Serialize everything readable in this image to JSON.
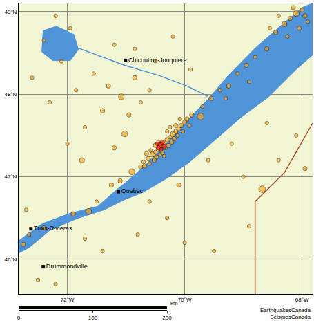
{
  "chart_data": {
    "type": "map",
    "xlim": [
      -72.83,
      -67.82
    ],
    "xticks": [
      {
        "value": -72,
        "label": "72°W"
      },
      {
        "value": -70,
        "label": "70°W"
      },
      {
        "value": -68,
        "label": "68°W"
      }
    ],
    "ylim": [
      45.58,
      49.1
    ],
    "yticks": [
      {
        "value": 46,
        "label": "46°N"
      },
      {
        "value": 47,
        "label": "47°N"
      },
      {
        "value": 48,
        "label": "48°N"
      },
      {
        "value": 49,
        "label": "49°N"
      }
    ],
    "grid": true,
    "areas": [
      {
        "color": "#4f93d8",
        "x": [
          -72.83,
          -72.42,
          -71.95,
          -71.48,
          -71.19,
          -70.96,
          -70.67,
          -70.32,
          -69.96,
          -69.61,
          -69.26,
          -68.8,
          -68.33,
          -67.98,
          -67.82,
          -67.82,
          -68.09,
          -68.56,
          -69.03,
          -69.5,
          -69.91,
          -70.32,
          -70.72,
          -71.02,
          -71.37,
          -71.84,
          -72.3,
          -72.65,
          -72.83
        ],
        "y": [
          46.225,
          46.433,
          46.558,
          46.642,
          46.825,
          46.958,
          47.142,
          47.392,
          47.683,
          47.933,
          48.225,
          48.558,
          48.85,
          49.058,
          49.1,
          48.475,
          48.308,
          47.975,
          47.725,
          47.433,
          47.183,
          46.975,
          46.808,
          46.725,
          46.6,
          46.492,
          46.35,
          46.142,
          46.075
        ]
      },
      {
        "color": "#4f93d8",
        "x": [
          -72.42,
          -72.19,
          -71.89,
          -71.81,
          -71.95,
          -72.25,
          -72.44
        ],
        "y": [
          48.767,
          48.825,
          48.725,
          48.542,
          48.408,
          48.408,
          48.517
        ]
      }
    ],
    "lines": [
      {
        "color": "#4f93d8",
        "x": [
          -71.81,
          -71.02,
          -70.43,
          -69.96,
          -69.61
        ],
        "y": [
          48.558,
          48.35,
          48.225,
          48.1,
          47.975
        ]
      },
      {
        "color": "#a0522d",
        "x": [
          -67.82,
          -68.3,
          -68.8,
          -68.8
        ],
        "y": [
          47.65,
          47.05,
          46.7,
          45.58
        ]
      }
    ],
    "series": [
      {
        "color": "#f5a623",
        "marker": "circle",
        "x": [
          -70.75,
          -70.7,
          -70.68,
          -70.62,
          -70.6,
          -70.55,
          -70.52,
          -70.5,
          -70.48,
          -70.45,
          -70.42,
          -70.4,
          -70.38,
          -70.35,
          -70.33,
          -70.3,
          -70.28,
          -70.25,
          -70.22,
          -70.2,
          -70.18,
          -70.15,
          -70.12,
          -70.1,
          -70.06,
          -70.03,
          -70.0,
          -69.96,
          -69.92,
          -69.88,
          -70.45,
          -70.58,
          -70.3,
          -70.15,
          -70.65,
          -70.35,
          -70.5,
          -69.73,
          -70.08,
          -70.25,
          -69.7,
          -69.55,
          -69.4,
          -69.25,
          -69.1,
          -68.95,
          -68.8,
          -68.6,
          -69.3,
          -68.9,
          -68.45,
          -68.3,
          -68.2,
          -68.1,
          -68.0,
          -67.95,
          -68.25,
          -68.05,
          -67.9,
          -68.15,
          -68.4,
          -68.55,
          -71.02,
          -71.08,
          -71.3,
          -71.55,
          -71.2,
          -70.85,
          -70.6,
          -71.4,
          -71.7,
          -71.85,
          -72.1,
          -72.4,
          -72.6,
          -72.3,
          -72.0,
          -71.75,
          -70.95,
          -70.75,
          -71.2,
          -70.85,
          -71.95,
          -72.2,
          -70.5,
          -70.2,
          -69.9,
          -70.9,
          -71.1,
          -71.25,
          -71.64,
          -71.5,
          -71.9,
          -72.4,
          -72.65,
          -72.75,
          -72.5,
          -72.2,
          -72.7,
          -70.6,
          -70.3,
          -70.1,
          -69.6,
          -69.2,
          -68.68,
          -68.4,
          -68.1,
          -67.95,
          -68.9,
          -69.5,
          -70.8,
          -71.4,
          -68.6,
          -69.0,
          -71.7,
          -70.0
        ],
        "y": [
          47.12,
          47.18,
          47.13,
          47.22,
          47.16,
          47.27,
          47.2,
          47.3,
          47.24,
          47.33,
          47.27,
          47.38,
          47.3,
          47.42,
          47.35,
          47.45,
          47.38,
          47.48,
          47.42,
          47.52,
          47.46,
          47.55,
          47.5,
          47.58,
          47.62,
          47.55,
          47.66,
          47.7,
          47.62,
          47.75,
          47.42,
          47.32,
          47.55,
          47.62,
          47.28,
          47.25,
          47.38,
          47.73,
          47.7,
          47.6,
          47.85,
          47.95,
          48.05,
          48.1,
          48.25,
          48.35,
          48.45,
          48.55,
          47.95,
          48.15,
          48.75,
          48.85,
          48.92,
          48.98,
          49.02,
          48.95,
          48.7,
          48.8,
          48.88,
          49.05,
          48.95,
          48.8,
          47.52,
          47.97,
          48.1,
          48.25,
          48.6,
          48.2,
          48.05,
          47.8,
          47.6,
          48.05,
          48.4,
          48.65,
          48.2,
          47.9,
          47.4,
          47.2,
          47.75,
          47.9,
          47.35,
          48.55,
          48.8,
          48.95,
          48.4,
          48.7,
          48.3,
          47.06,
          46.95,
          46.9,
          46.58,
          46.7,
          46.55,
          46.38,
          46.3,
          46.18,
          45.75,
          45.7,
          46.6,
          46.7,
          46.5,
          46.9,
          47.2,
          47.4,
          46.85,
          47.2,
          47.5,
          47.1,
          46.4,
          46.1,
          46.3,
          46.1,
          47.65,
          47.0,
          46.25,
          46.2
        ],
        "magnitudes": [
          2,
          1.5,
          2,
          2,
          1.5,
          2.5,
          2,
          1.5,
          2,
          2,
          1.5,
          2.5,
          2,
          2,
          1.5,
          2,
          2,
          1.5,
          2,
          2.5,
          2,
          2,
          1.5,
          2,
          2,
          1.5,
          2,
          2,
          1.5,
          2,
          1.5,
          1.5,
          1.5,
          2,
          2,
          1.5,
          2,
          3.5,
          1.5,
          1.5,
          1.5,
          2,
          1.5,
          2,
          1.5,
          2,
          1.5,
          2,
          1.5,
          1.5,
          2,
          2.5,
          2,
          3,
          2,
          2,
          1.5,
          2,
          1.5,
          2,
          1.5,
          1.5,
          3,
          2.8,
          2,
          1.5,
          1.5,
          2,
          1.5,
          2,
          1.5,
          1.5,
          1.5,
          1.5,
          1.5,
          1.5,
          1.5,
          2.5,
          2,
          1.5,
          2,
          1.5,
          1.5,
          1.5,
          1.5,
          1.5,
          1.5,
          3,
          2,
          2,
          3,
          1.5,
          2,
          2,
          1.5,
          2,
          1.5,
          1.5,
          1.5,
          1.5,
          1.5,
          2,
          1.5,
          1.5,
          3.5,
          1.5,
          1.5,
          2,
          1.5,
          1.5,
          1.5,
          1.5,
          1.5,
          1.5,
          1.5,
          1.5
        ]
      },
      {
        "color": "#ff2020",
        "marker": "circle",
        "x": [
          -70.42,
          -70.38,
          -70.45,
          -70.4,
          -70.35,
          -70.47
        ],
        "y": [
          47.38,
          47.42,
          47.35,
          47.33,
          47.37,
          47.4
        ],
        "magnitudes": [
          2.5,
          2,
          2,
          1.5,
          2,
          1.5
        ]
      }
    ],
    "places": {
      "names": [
        "Chicoutimi-Jonquiere",
        "Quebec",
        "Trois-Rivieres",
        "Drummondville"
      ],
      "x": [
        -71.01,
        -71.13,
        -72.62,
        -72.41
      ],
      "y": [
        48.41,
        46.82,
        46.37,
        45.91
      ]
    },
    "scale_bar": {
      "xlim": [
        0,
        200
      ],
      "xticks": [
        0,
        100,
        200
      ],
      "unit": "km"
    },
    "credit": [
      "EarthquakesCanada",
      "SéismesCanada"
    ]
  }
}
